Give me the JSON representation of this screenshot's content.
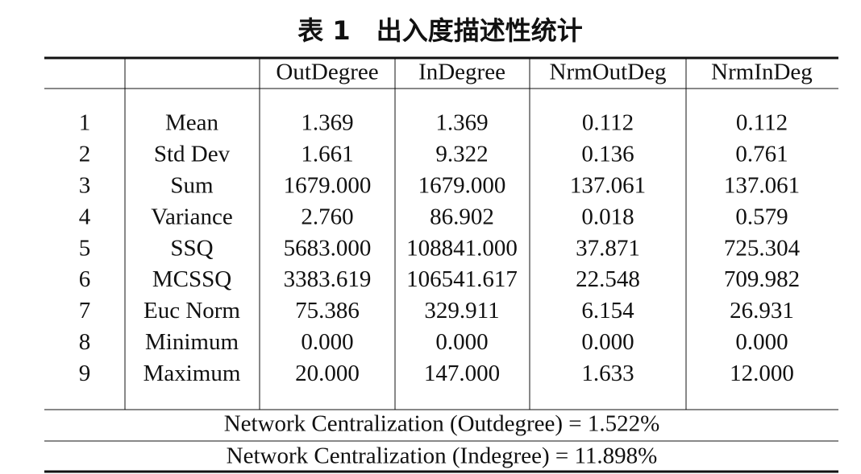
{
  "title": "表 1　出入度描述性统计",
  "table": {
    "header": [
      "OutDegree",
      "InDegree",
      "NrmOutDeg",
      "NrmInDeg"
    ],
    "rows": [
      [
        "1",
        "Mean",
        "1.369",
        "1.369",
        "0.112",
        "0.112"
      ],
      [
        "2",
        "Std Dev",
        "1.661",
        "9.322",
        "0.136",
        "0.761"
      ],
      [
        "3",
        "Sum",
        "1679.000",
        "1679.000",
        "137.061",
        "137.061"
      ],
      [
        "4",
        "Variance",
        "2.760",
        "86.902",
        "0.018",
        "0.579"
      ],
      [
        "5",
        "SSQ",
        "5683.000",
        "108841.000",
        "37.871",
        "725.304"
      ],
      [
        "6",
        "MCSSQ",
        "3383.619",
        "106541.617",
        "22.548",
        "709.982"
      ],
      [
        "7",
        "Euc Norm",
        "75.386",
        "329.911",
        "6.154",
        "26.931"
      ],
      [
        "8",
        "Minimum",
        "0.000",
        "0.000",
        "0.000",
        "0.000"
      ],
      [
        "9",
        "Maximum",
        "20.000",
        "147.000",
        "1.633",
        "12.000"
      ]
    ],
    "footer": [
      "Network Centralization (Outdegree) = 1.522%",
      "Network Centralization (Indegree) = 11.898%"
    ]
  }
}
